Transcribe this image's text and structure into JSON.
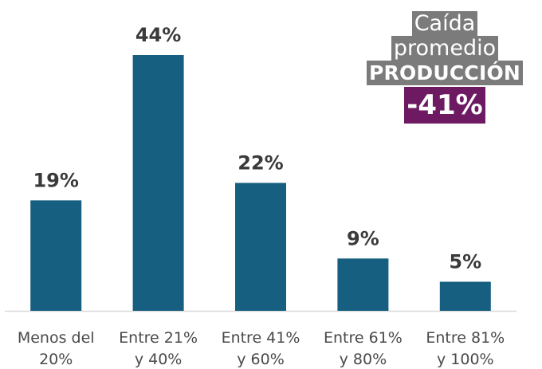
{
  "chart_data": {
    "type": "bar",
    "categories": [
      [
        "Menos del",
        "20%"
      ],
      [
        "Entre 21%",
        "y 40%"
      ],
      [
        "Entre 41%",
        "y 60%"
      ],
      [
        "Entre 61%",
        "y 80%"
      ],
      [
        "Entre 81%",
        "y 100%"
      ]
    ],
    "values": [
      19,
      44,
      22,
      9,
      5
    ],
    "value_labels": [
      "19%",
      "44%",
      "22%",
      "9%",
      "5%"
    ],
    "title": "",
    "xlabel": "",
    "ylabel": "",
    "ylim": [
      0,
      44
    ],
    "grid": false,
    "legend": "none",
    "bar_color": "#165f80",
    "axis_color": "#d9d9d9"
  },
  "callout": {
    "line1": "Caída",
    "line2": "promedio",
    "line3": "PRODUCCIÓN",
    "value": "-41%",
    "label_bg": "#7b7b7b",
    "value_bg": "#6d1a63"
  }
}
